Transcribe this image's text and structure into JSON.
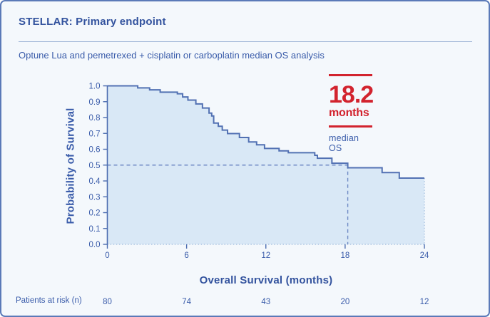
{
  "header": {
    "title": "STELLAR: Primary endpoint",
    "subtitle": "Optune Lua and pemetrexed + cisplatin or carboplatin median OS analysis"
  },
  "median_callout": {
    "value": "18.2",
    "unit": "months",
    "label": "median OS"
  },
  "risk_table": {
    "label": "Patients at risk (n)",
    "times": [
      0,
      6,
      12,
      18,
      24
    ],
    "counts": [
      80,
      74,
      43,
      20,
      12
    ]
  },
  "colors": {
    "accent_red": "#d2232e",
    "text_blue": "#3a5caa",
    "title_blue": "#33539e",
    "curve_line": "#5271b3",
    "curve_fill": "#d9e8f6",
    "dashed_line": "#6e89c4",
    "axis_line": "#4c6cb0",
    "dotted_axis": "#a9c3e2",
    "card_background": "#f4f8fc",
    "card_border": "#5b7ab8"
  },
  "chart_data": {
    "type": "line",
    "subtype": "kaplan_meier_step_area",
    "title": "Optune Lua and pemetrexed + cisplatin or carboplatin median OS analysis",
    "xlabel": "Overall Survival (months)",
    "ylabel": "Probability of Survival",
    "xlim": [
      0,
      24
    ],
    "ylim": [
      0.0,
      1.0
    ],
    "xticks": [
      0,
      6,
      12,
      18,
      24
    ],
    "yticks": [
      0.0,
      0.1,
      0.2,
      0.3,
      0.4,
      0.5,
      0.6,
      0.7,
      0.8,
      0.9,
      1.0
    ],
    "grid": false,
    "legend": false,
    "median": {
      "time_months": 18.2,
      "probability": 0.5
    },
    "series": [
      {
        "name": "Optune Lua + pemetrexed + cisplatin or carboplatin",
        "end_time": 24,
        "step_points": [
          [
            0.0,
            1.0
          ],
          [
            2.3,
            0.987
          ],
          [
            3.2,
            0.975
          ],
          [
            4.0,
            0.96
          ],
          [
            5.3,
            0.95
          ],
          [
            5.7,
            0.93
          ],
          [
            6.1,
            0.91
          ],
          [
            6.7,
            0.886
          ],
          [
            7.2,
            0.86
          ],
          [
            7.7,
            0.828
          ],
          [
            7.9,
            0.81
          ],
          [
            8.05,
            0.765
          ],
          [
            8.4,
            0.745
          ],
          [
            8.7,
            0.721
          ],
          [
            9.1,
            0.699
          ],
          [
            10.0,
            0.674
          ],
          [
            10.7,
            0.646
          ],
          [
            11.3,
            0.628
          ],
          [
            11.9,
            0.605
          ],
          [
            13.0,
            0.59
          ],
          [
            13.7,
            0.578
          ],
          [
            15.7,
            0.562
          ],
          [
            15.9,
            0.543
          ],
          [
            17.0,
            0.512
          ],
          [
            18.2,
            0.483
          ],
          [
            20.8,
            0.453
          ],
          [
            22.1,
            0.418
          ]
        ]
      }
    ]
  }
}
